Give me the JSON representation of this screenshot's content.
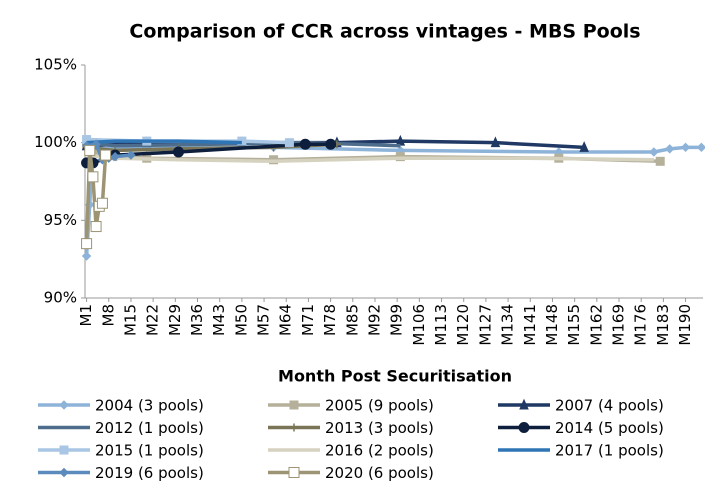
{
  "chart_data": {
    "type": "line",
    "title": "Comparison of CCR across vintages - MBS Pools",
    "x_label": "Month Post Securitisation",
    "xlim": [
      0.5,
      195.5
    ],
    "xticks": [
      {
        "value": 1,
        "label": "M1"
      },
      {
        "value": 8,
        "label": "M8"
      },
      {
        "value": 15,
        "label": "M15"
      },
      {
        "value": 22,
        "label": "M22"
      },
      {
        "value": 29,
        "label": "M29"
      },
      {
        "value": 36,
        "label": "M36"
      },
      {
        "value": 43,
        "label": "M43"
      },
      {
        "value": 50,
        "label": "M50"
      },
      {
        "value": 57,
        "label": "M57"
      },
      {
        "value": 64,
        "label": "M64"
      },
      {
        "value": 71,
        "label": "M71"
      },
      {
        "value": 78,
        "label": "M78"
      },
      {
        "value": 85,
        "label": "M85"
      },
      {
        "value": 92,
        "label": "M92"
      },
      {
        "value": 99,
        "label": "M99"
      },
      {
        "value": 106,
        "label": "M106"
      },
      {
        "value": 113,
        "label": "M113"
      },
      {
        "value": 120,
        "label": "M120"
      },
      {
        "value": 127,
        "label": "M127"
      },
      {
        "value": 134,
        "label": "M134"
      },
      {
        "value": 141,
        "label": "M141"
      },
      {
        "value": 148,
        "label": "M148"
      },
      {
        "value": 155,
        "label": "M155"
      },
      {
        "value": 162,
        "label": "M162"
      },
      {
        "value": 169,
        "label": "M169"
      },
      {
        "value": 176,
        "label": "M176"
      },
      {
        "value": 183,
        "label": "M183"
      },
      {
        "value": 190,
        "label": "M190"
      }
    ],
    "ylim": [
      90,
      105
    ],
    "yticks": [
      {
        "value": 90,
        "label": "90%"
      },
      {
        "value": 95,
        "label": "95%"
      },
      {
        "value": 100,
        "label": "100%"
      },
      {
        "value": 105,
        "label": "105%"
      }
    ],
    "grid": false,
    "legend": "bottom",
    "series": [
      {
        "name": "2004 (3 pools)",
        "color": "#8db3d9",
        "marker": "diamond",
        "x": [
          1,
          2,
          3,
          5,
          10,
          20,
          40,
          60,
          100,
          150,
          180,
          185,
          190,
          195
        ],
        "values": [
          92.7,
          96,
          100,
          99.8,
          99.6,
          99.7,
          99.7,
          99.7,
          99.5,
          99.4,
          99.4,
          99.6,
          99.7,
          99.7
        ]
      },
      {
        "name": "2005 (9 pools)",
        "color": "#b5b09a",
        "marker": "square",
        "x": [
          1,
          5,
          20,
          60,
          100,
          150,
          182
        ],
        "values": [
          99.8,
          99.3,
          99.0,
          98.9,
          99.1,
          99.0,
          98.8
        ]
      },
      {
        "name": "2007 (4 pools)",
        "color": "#1f3864",
        "marker": "triangle",
        "x": [
          1,
          20,
          50,
          80,
          100,
          130,
          158
        ],
        "values": [
          99.8,
          100,
          100,
          100,
          100.1,
          100,
          99.7
        ]
      },
      {
        "name": "2012 (1 pools)",
        "color": "#4e6d8c",
        "marker": "none",
        "x": [
          1,
          10,
          40,
          70,
          100
        ],
        "values": [
          100,
          99.8,
          99.9,
          100,
          99.8
        ]
      },
      {
        "name": "2013 (3 pools)",
        "color": "#7a7556",
        "marker": "plus",
        "x": [
          1,
          5,
          10,
          30,
          60,
          80
        ],
        "values": [
          99.9,
          99.6,
          99.5,
          99.6,
          99.7,
          99.9
        ]
      },
      {
        "name": "2014 (5 pools)",
        "color": "#0d1f3c",
        "marker": "circle",
        "x": [
          1,
          3,
          10,
          30,
          70,
          78
        ],
        "values": [
          98.7,
          98.7,
          99.2,
          99.4,
          99.9,
          99.9
        ]
      },
      {
        "name": "2015 (1 pools)",
        "color": "#a9c6e4",
        "marker": "square",
        "x": [
          1,
          20,
          50,
          65
        ],
        "values": [
          100.2,
          100.1,
          100.1,
          100
        ]
      },
      {
        "name": "2016 (2 pools)",
        "color": "#d6d2c0",
        "marker": "none",
        "x": [
          1,
          10,
          30,
          60,
          100,
          140,
          180
        ],
        "values": [
          99.2,
          99.0,
          98.9,
          98.8,
          99.0,
          99.0,
          98.9
        ]
      },
      {
        "name": "2017 (1 pools)",
        "color": "#2e75b6",
        "marker": "none",
        "x": [
          1,
          10,
          30,
          50
        ],
        "values": [
          100,
          100.1,
          100.1,
          100
        ]
      },
      {
        "name": "2019 (6 pools)",
        "color": "#5b8bbd",
        "marker": "diamond",
        "x": [
          1,
          4,
          6,
          8,
          10,
          15
        ],
        "values": [
          99.8,
          99.9,
          98.9,
          99.0,
          99.1,
          99.2
        ]
      },
      {
        "name": "2020 (6 pools)",
        "color": "#9c9473",
        "marker": "hollow-square",
        "x": [
          1,
          2,
          3,
          4,
          5,
          6,
          7
        ],
        "values": [
          93.5,
          99.5,
          97.8,
          94.6,
          95.9,
          96.1,
          99.2
        ]
      }
    ]
  }
}
